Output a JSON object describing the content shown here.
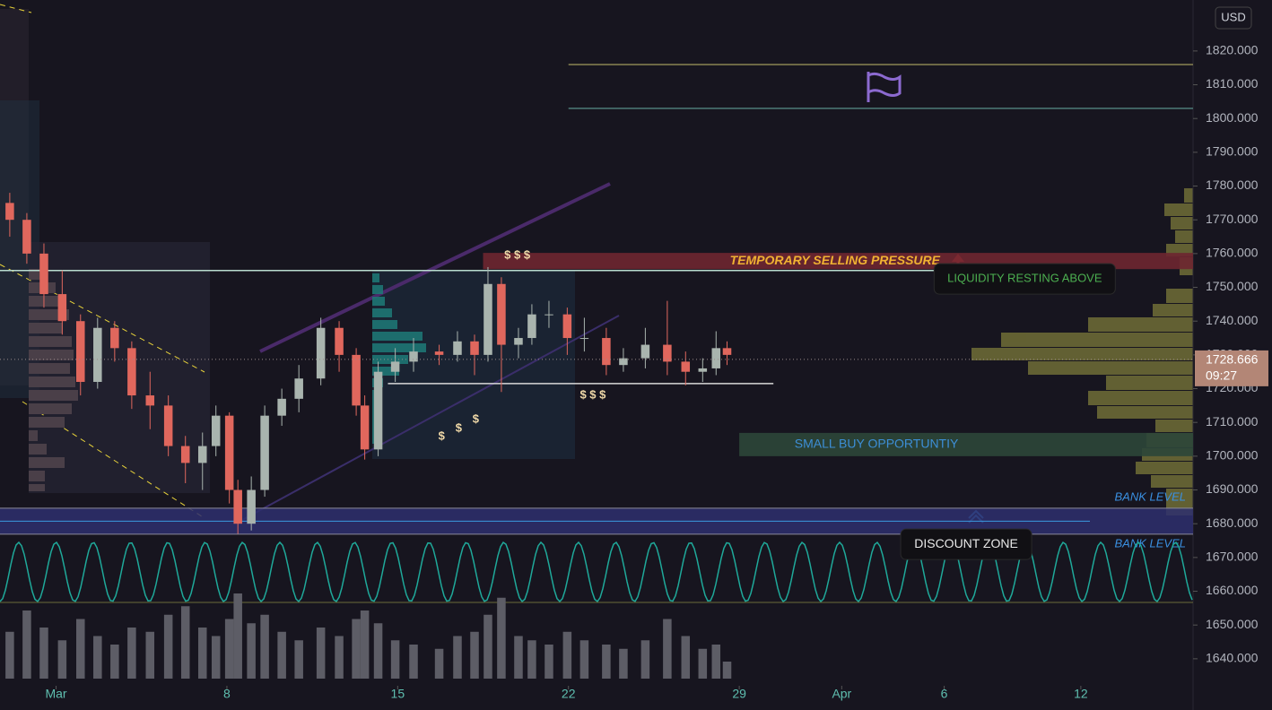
{
  "chart_data": {
    "type": "candlestick",
    "currency": "USD",
    "x": [
      -1.9,
      -1.2,
      -0.5,
      0.25,
      1.0,
      1.7,
      2.4,
      3.1,
      3.85,
      4.6,
      5.3,
      6.0,
      6.55,
      7.1,
      7.45,
      8.0,
      8.55,
      9.25,
      9.95,
      10.85,
      11.6,
      12.3,
      12.65,
      13.2,
      13.9,
      14.65,
      15.7,
      16.45,
      17.15,
      17.7,
      18.25,
      18.95,
      19.5,
      20.2,
      20.95,
      21.65,
      22.55,
      23.25,
      24.15,
      25.05,
      25.8,
      26.5,
      27.05,
      27.5
    ],
    "open": [
      1775,
      1770,
      1760,
      1748,
      1740,
      1722,
      1738,
      1732,
      1718,
      1715,
      1703,
      1698,
      1703,
      1712,
      1690,
      1680,
      1690,
      1712,
      1717,
      1723,
      1738,
      1730,
      1715,
      1702,
      1725,
      1728,
      1731,
      1730,
      1734,
      1730,
      1751,
      1733,
      1735,
      1742,
      1742,
      1735,
      1735,
      1727,
      1729,
      1733,
      1728,
      1725,
      1726,
      1732
    ],
    "high": [
      1778,
      1772,
      1763,
      1755,
      1742,
      1741,
      1740,
      1734,
      1725,
      1718,
      1706,
      1707,
      1715,
      1713,
      1693,
      1694,
      1715,
      1720,
      1727,
      1741,
      1740,
      1732,
      1718,
      1728,
      1732,
      1735,
      1733,
      1737,
      1736,
      1756,
      1753,
      1738,
      1745,
      1746,
      1744,
      1741,
      1738,
      1732,
      1738,
      1746,
      1731,
      1729,
      1737,
      1734
    ],
    "low": [
      1765,
      1757,
      1744,
      1736,
      1718,
      1720,
      1728,
      1714,
      1708,
      1700,
      1692,
      1690,
      1700,
      1686,
      1677,
      1678,
      1688,
      1709,
      1713,
      1721,
      1725,
      1712,
      1699,
      1700,
      1722,
      1725,
      1727,
      1728,
      1724,
      1728,
      1719,
      1729,
      1733,
      1738,
      1730,
      1731,
      1724,
      1725,
      1726,
      1724,
      1721,
      1722,
      1724,
      1727
    ],
    "close": [
      1770,
      1760,
      1748,
      1740,
      1722,
      1738,
      1732,
      1718,
      1715,
      1703,
      1698,
      1703,
      1712,
      1690,
      1680,
      1690,
      1712,
      1717,
      1723,
      1738,
      1730,
      1715,
      1702,
      1725,
      1728,
      1731,
      1730,
      1734,
      1730,
      1751,
      1733,
      1735,
      1742,
      1742,
      1735,
      1735,
      1727,
      1729,
      1733,
      1728,
      1725,
      1726,
      1732,
      1730
    ],
    "volume": [
      55,
      80,
      60,
      45,
      70,
      50,
      40,
      60,
      55,
      75,
      85,
      60,
      50,
      70,
      100,
      65,
      75,
      55,
      45,
      60,
      50,
      70,
      80,
      65,
      45,
      40,
      35,
      50,
      55,
      75,
      95,
      50,
      45,
      40,
      55,
      45,
      40,
      35,
      45,
      70,
      50,
      35,
      40,
      20
    ],
    "up_color": "#a9b4ae",
    "down_color": "#e0675d",
    "volume_color": "#5d5d66",
    "xlim": [
      -2.3,
      46.6
    ],
    "xticks": [
      {
        "value": 0,
        "label": "Mar"
      },
      {
        "value": 7,
        "label": "8"
      },
      {
        "value": 14,
        "label": "15"
      },
      {
        "value": 21,
        "label": "22"
      },
      {
        "value": 28,
        "label": "29"
      },
      {
        "value": 32.2,
        "label": "Apr"
      },
      {
        "value": 36.4,
        "label": "6"
      },
      {
        "value": 42,
        "label": "12"
      }
    ],
    "ylim": [
      1632,
      1835.1
    ],
    "yticks": [
      {
        "value": 1640,
        "label": "1640.000"
      },
      {
        "value": 1650,
        "label": "1650.000"
      },
      {
        "value": 1660,
        "label": "1660.000"
      },
      {
        "value": 1670,
        "label": "1670.000"
      },
      {
        "value": 1680,
        "label": "1680.000"
      },
      {
        "value": 1690,
        "label": "1690.000"
      },
      {
        "value": 1700,
        "label": "1700.000"
      },
      {
        "value": 1710,
        "label": "1710.000"
      },
      {
        "value": 1720,
        "label": "1720.000"
      },
      {
        "value": 1730,
        "label": "1730.000"
      },
      {
        "value": 1740,
        "label": "1740.000"
      },
      {
        "value": 1750,
        "label": "1750.000"
      },
      {
        "value": 1760,
        "label": "1760.000"
      },
      {
        "value": 1770,
        "label": "1770.000"
      },
      {
        "value": 1780,
        "label": "1780.000"
      },
      {
        "value": 1790,
        "label": "1790.000"
      },
      {
        "value": 1800,
        "label": "1800.000"
      },
      {
        "value": 1810,
        "label": "1810.000"
      },
      {
        "value": 1820,
        "label": "1820.000"
      }
    ],
    "last_price": {
      "value": 1728.666,
      "label": "1728.666"
    },
    "countdown": "09:27",
    "zones": [
      {
        "label": "TEMPORARY SELLING PRESSURE",
        "top": 1760.2,
        "bottom": 1755.4,
        "x0": 17.5,
        "color": "#6e2630",
        "text_color": "#f0b232"
      },
      {
        "label": "SMALL BUY OPPORTUNTIY",
        "top": 1706.9,
        "bottom": 1700,
        "x0": 28.0,
        "color": "#2c4638",
        "text_color": "#3d8ed6"
      }
    ],
    "bank_levels": [
      {
        "label": "BANK LEVEL",
        "value": 1684.6
      },
      {
        "label": "BANK LEVEL",
        "value": 1676.9
      }
    ],
    "lines": [
      {
        "value": 1816,
        "x0": 21.0,
        "x1": 46.6,
        "color": "#8a8452"
      },
      {
        "value": 1803,
        "x0": 21.0,
        "x1": 46.6,
        "color": "#4d7a77"
      },
      {
        "value": 1755,
        "x0": -2.3,
        "x1": 37.2,
        "color": "#b9dccf"
      },
      {
        "value": 1721.5,
        "x0": 13.6,
        "x1": 29.4,
        "color": "#d8d8d8"
      }
    ],
    "callouts": [
      {
        "label": "LIQUIDITY RESTING ABOVE",
        "x": 39.7,
        "value": 1752.5,
        "color": "#4caf50"
      },
      {
        "label": "DISCOUNT ZONE",
        "x": 37.3,
        "value": 1673.9,
        "color": "#e8e8e8"
      }
    ],
    "markers": [
      {
        "label": "$ $ $",
        "x": 18.9,
        "value": 1759.4
      },
      {
        "label": "$ $ $",
        "x": 22.0,
        "value": 1718.0
      },
      {
        "label": "$",
        "x": 15.8,
        "value": 1705.8
      },
      {
        "label": "$",
        "x": 16.5,
        "value": 1708.2
      },
      {
        "label": "$",
        "x": 17.2,
        "value": 1710.8
      }
    ]
  }
}
